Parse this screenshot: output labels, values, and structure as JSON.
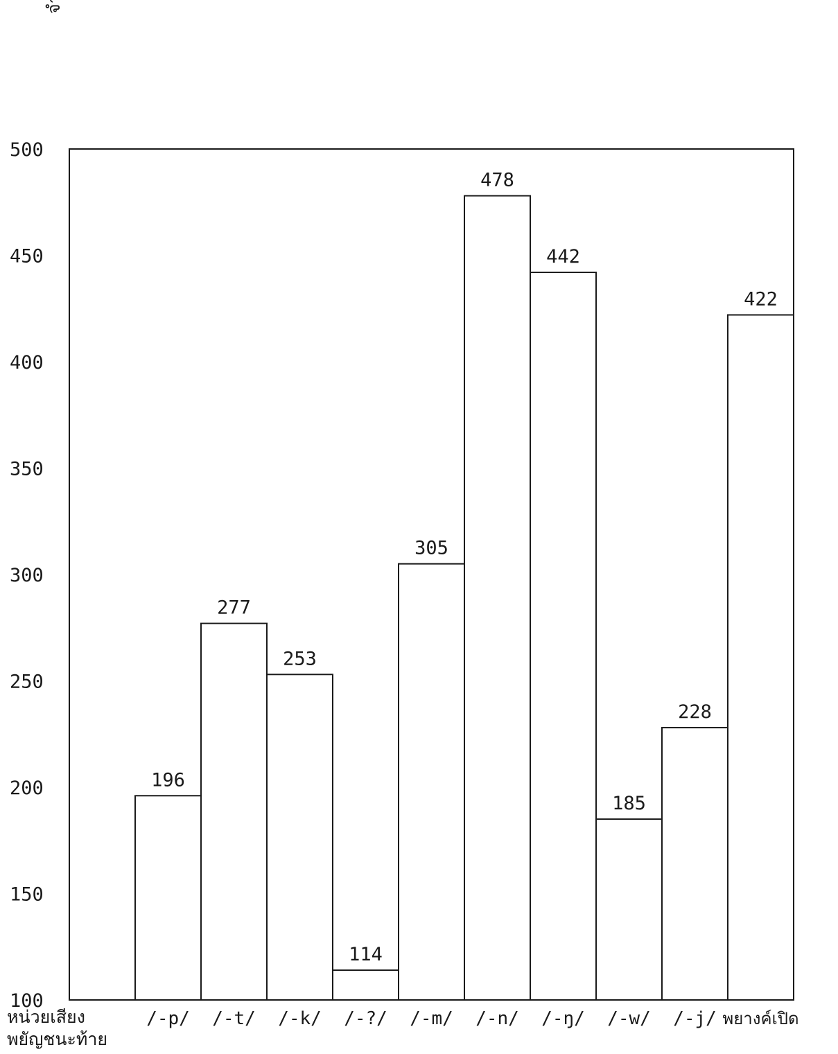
{
  "chart_data": {
    "type": "bar",
    "ylabel": "จำนวนพยางค์",
    "xlabel_lines": [
      "หน่วยเสียง",
      "พยัญชนะท้าย"
    ],
    "ylim": [
      100,
      500
    ],
    "yticks": [
      100,
      150,
      200,
      250,
      300,
      350,
      400,
      450,
      500
    ],
    "categories": [
      "/-p/",
      "/-t/",
      "/-k/",
      "/-?/",
      "/-m/",
      "/-n/",
      "/-ŋ/",
      "/-w/",
      "/-j/",
      "พยางค์เปิด"
    ],
    "values": [
      196,
      277,
      253,
      114,
      305,
      478,
      442,
      185,
      228,
      422
    ],
    "grid": false,
    "colors": {
      "bar_fill": "#ffffff",
      "stroke": "#1a1a1a"
    }
  }
}
